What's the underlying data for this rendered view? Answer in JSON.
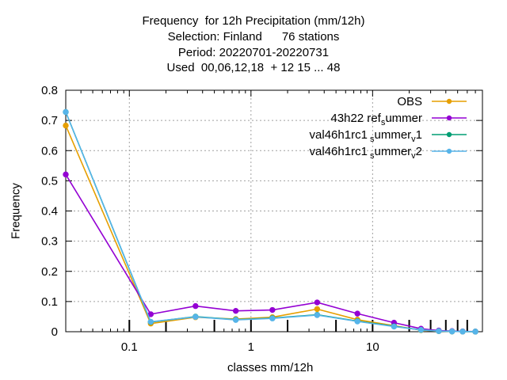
{
  "chart_data": {
    "type": "line",
    "title_lines": [
      "Frequency  for 12h Precipitation (mm/12h)",
      "Selection: Finland      76 stations",
      "Period: 20220701-20220731",
      "Used  00,06,12,18  + 12 15 ... 48"
    ],
    "xlabel": "classes mm/12h",
    "ylabel": "Frequency",
    "xscale": "log",
    "xlim": [
      0.03,
      80
    ],
    "ylim": [
      0,
      0.8
    ],
    "xticks": [
      {
        "value": 0.1,
        "label": "0.1"
      },
      {
        "value": 1,
        "label": "1"
      },
      {
        "value": 10,
        "label": "10"
      }
    ],
    "yticks": [
      {
        "value": 0,
        "label": "0"
      },
      {
        "value": 0.1,
        "label": "0.1"
      },
      {
        "value": 0.2,
        "label": "0.2"
      },
      {
        "value": 0.3,
        "label": "0.3"
      },
      {
        "value": 0.4,
        "label": "0.4"
      },
      {
        "value": 0.5,
        "label": "0.5"
      },
      {
        "value": 0.6,
        "label": "0.6"
      },
      {
        "value": 0.7,
        "label": "0.7"
      },
      {
        "value": 0.8,
        "label": "0.8"
      }
    ],
    "grid": true,
    "legend_position": "top-right",
    "class_boundaries": [
      0.1,
      0.2,
      0.5,
      1,
      2,
      5,
      10,
      20,
      30,
      40,
      50,
      60
    ],
    "x": [
      0.03,
      0.15,
      0.35,
      0.75,
      1.5,
      3.5,
      7.5,
      15,
      25,
      35,
      45,
      55,
      70
    ],
    "series": [
      {
        "name": "OBS",
        "color": "#e69f00",
        "values": [
          0.683,
          0.027,
          0.048,
          0.042,
          0.048,
          0.075,
          0.04,
          0.02,
          0.005,
          0.002,
          0.001,
          0.0005,
          0.0003
        ]
      },
      {
        "name": "43h22 _ref_summer",
        "color": "#9400d3",
        "values": [
          0.521,
          0.058,
          0.085,
          0.069,
          0.072,
          0.097,
          0.06,
          0.03,
          0.01,
          0.004,
          0.002,
          0.001,
          0.0005
        ]
      },
      {
        "name": "val46h1rc1 _summer_v1",
        "color": "#009e73",
        "values": [
          0.728,
          0.032,
          0.05,
          0.04,
          0.045,
          0.056,
          0.035,
          0.018,
          0.006,
          0.002,
          0.001,
          0.0005,
          0.0003
        ]
      },
      {
        "name": "val46h1rc1 _summer_v2",
        "color": "#56b4e9",
        "values": [
          0.728,
          0.033,
          0.049,
          0.039,
          0.044,
          0.055,
          0.034,
          0.017,
          0.006,
          0.002,
          0.001,
          0.0005,
          0.0003
        ]
      }
    ],
    "legend_labels": [
      {
        "main": "OBS",
        "parts": []
      },
      {
        "main": "43h22",
        "parts": [
          {
            "t": " r",
            "sub": false
          },
          {
            "t": "ef",
            "sub": false
          },
          {
            "t": "s",
            "sub": true
          },
          {
            "t": "ummer",
            "sub": false
          }
        ]
      },
      {
        "main": "val46h1rc1",
        "parts": [
          {
            "t": " s",
            "sub": true
          },
          {
            "t": "ummer",
            "sub": false
          },
          {
            "t": "v",
            "sub": true
          },
          {
            "t": "1",
            "sub": false
          }
        ]
      },
      {
        "main": "val46h1rc1",
        "parts": [
          {
            "t": " s",
            "sub": true
          },
          {
            "t": "ummer",
            "sub": false
          },
          {
            "t": "v",
            "sub": true
          },
          {
            "t": "2",
            "sub": false
          }
        ]
      }
    ]
  }
}
